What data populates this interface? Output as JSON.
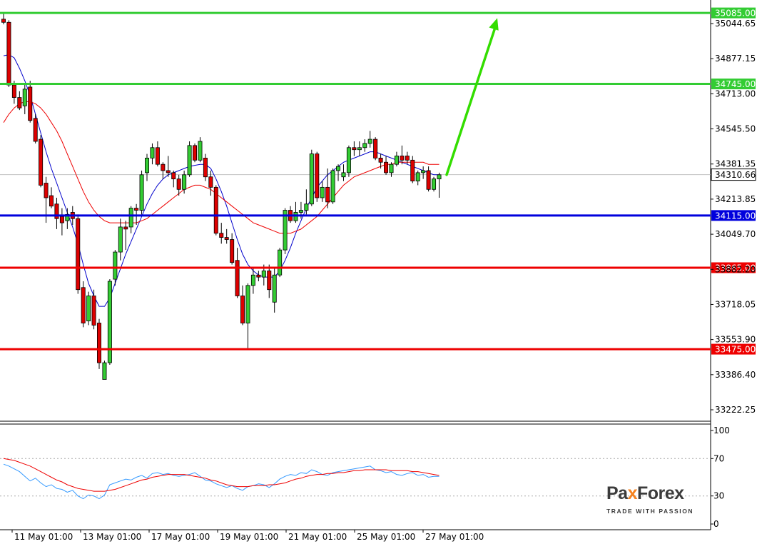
{
  "chart_data": [
    {
      "type": "candlestick",
      "y_ticks": [
        "35044.65",
        "34877.15",
        "34713.00",
        "34545.50",
        "34381.35",
        "34213.85",
        "34049.70",
        "33882.20",
        "33718.05",
        "33553.90",
        "33386.40",
        "33222.25"
      ],
      "x_ticks": [
        "11 May 01:00",
        "13 May 01:00",
        "17 May 01:00",
        "19 May 01:00",
        "21 May 01:00",
        "25 May 01:00",
        "27 May 01:00"
      ],
      "ylim": [
        33130,
        35140
      ],
      "current_price": {
        "label": "34310.66",
        "value": 34310.66
      },
      "levels": [
        {
          "label": "35085.00",
          "value": 35085.0,
          "role": "target",
          "color": "#33cc33"
        },
        {
          "label": "34745.00",
          "value": 34745.0,
          "role": "target",
          "color": "#33cc33"
        },
        {
          "label": "34115.00",
          "value": 34115.0,
          "role": "pivot",
          "color": "#0000dd"
        },
        {
          "label": "33865.00",
          "value": 33865.0,
          "role": "support",
          "color": "#ee0000"
        },
        {
          "label": "33475.00",
          "value": 33475.0,
          "role": "support",
          "color": "#ee0000"
        }
      ],
      "ohlc": [
        [
          35055,
          35085,
          35030,
          35040
        ],
        [
          35040,
          35050,
          34730,
          34740
        ],
        [
          34740,
          34760,
          34650,
          34680
        ],
        [
          34680,
          34710,
          34620,
          34630
        ],
        [
          34640,
          34740,
          34600,
          34720
        ],
        [
          34730,
          34760,
          34560,
          34570
        ],
        [
          34580,
          34600,
          34460,
          34470
        ],
        [
          34480,
          34500,
          34250,
          34260
        ],
        [
          34270,
          34300,
          34080,
          34200
        ],
        [
          34210,
          34250,
          34150,
          34160
        ],
        [
          34170,
          34200,
          34050,
          34100
        ],
        [
          34110,
          34150,
          34020,
          34080
        ],
        [
          34090,
          34150,
          34050,
          34120
        ],
        [
          34130,
          34160,
          34070,
          34100
        ],
        [
          34100,
          34120,
          33740,
          33760
        ],
        [
          33770,
          33800,
          33580,
          33600
        ],
        [
          33610,
          33750,
          33590,
          33730
        ],
        [
          33730,
          33760,
          33570,
          33590
        ],
        [
          33600,
          33620,
          33380,
          33410
        ],
        [
          33330,
          33420,
          33330,
          33410
        ],
        [
          33410,
          33810,
          33400,
          33800
        ],
        [
          33810,
          33950,
          33780,
          33940
        ],
        [
          33940,
          34100,
          33900,
          34060
        ],
        [
          34060,
          34090,
          33950,
          34050
        ],
        [
          34060,
          34160,
          34030,
          34150
        ],
        [
          34150,
          34170,
          34070,
          34140
        ],
        [
          34140,
          34330,
          34120,
          34310
        ],
        [
          34320,
          34410,
          34280,
          34390
        ],
        [
          34390,
          34460,
          34360,
          34440
        ],
        [
          34440,
          34470,
          34350,
          34360
        ],
        [
          34360,
          34370,
          34290,
          34330
        ],
        [
          34330,
          34400,
          34300,
          34320
        ],
        [
          34320,
          34330,
          34250,
          34290
        ],
        [
          34290,
          34310,
          34210,
          34240
        ],
        [
          34240,
          34330,
          34220,
          34310
        ],
        [
          34310,
          34470,
          34300,
          34450
        ],
        [
          34450,
          34460,
          34370,
          34380
        ],
        [
          34380,
          34490,
          34370,
          34470
        ],
        [
          34390,
          34410,
          34280,
          34300
        ],
        [
          34300,
          34330,
          34210,
          34250
        ],
        [
          34250,
          34260,
          34020,
          34030
        ],
        [
          34030,
          34080,
          33980,
          34010
        ],
        [
          34010,
          34050,
          33980,
          34000
        ],
        [
          34000,
          34030,
          33880,
          33890
        ],
        [
          33900,
          33960,
          33720,
          33730
        ],
        [
          33730,
          33780,
          33590,
          33600
        ],
        [
          33600,
          33790,
          33480,
          33780
        ],
        [
          33780,
          33860,
          33740,
          33830
        ],
        [
          33830,
          33850,
          33800,
          33820
        ],
        [
          33820,
          33880,
          33780,
          33850
        ],
        [
          33850,
          33880,
          33720,
          33760
        ],
        [
          33700,
          33870,
          33650,
          33830
        ],
        [
          33830,
          33960,
          33820,
          33950
        ],
        [
          33950,
          34150,
          33930,
          34140
        ],
        [
          34140,
          34160,
          34080,
          34090
        ],
        [
          34090,
          34180,
          34080,
          34130
        ],
        [
          34130,
          34180,
          34100,
          34140
        ],
        [
          34140,
          34240,
          34120,
          34170
        ],
        [
          34170,
          34430,
          34160,
          34410
        ],
        [
          34410,
          34420,
          34180,
          34200
        ],
        [
          34200,
          34280,
          34180,
          34250
        ],
        [
          34250,
          34340,
          34150,
          34180
        ],
        [
          34180,
          34340,
          34170,
          34330
        ],
        [
          34330,
          34360,
          34280,
          34350
        ],
        [
          34300,
          34360,
          34280,
          34320
        ],
        [
          34320,
          34450,
          34300,
          34440
        ],
        [
          34440,
          34470,
          34400,
          34430
        ],
        [
          34430,
          34470,
          34400,
          34440
        ],
        [
          34440,
          34480,
          34420,
          34460
        ],
        [
          34460,
          34520,
          34440,
          34480
        ],
        [
          34480,
          34490,
          34380,
          34390
        ],
        [
          34390,
          34410,
          34340,
          34370
        ],
        [
          34370,
          34400,
          34310,
          34320
        ],
        [
          34320,
          34370,
          34300,
          34360
        ],
        [
          34360,
          34420,
          34350,
          34400
        ],
        [
          34400,
          34450,
          34360,
          34380
        ],
        [
          34400,
          34420,
          34360,
          34380
        ],
        [
          34380,
          34400,
          34270,
          34280
        ],
        [
          34280,
          34330,
          34260,
          34320
        ],
        [
          34320,
          34350,
          34290,
          34330
        ],
        [
          34330,
          34350,
          34230,
          34240
        ],
        [
          34240,
          34300,
          34230,
          34290
        ],
        [
          34290,
          34320,
          34200,
          34310
        ]
      ],
      "overlays": [
        {
          "kind": "fast moving average",
          "color": "#0000cc",
          "y": [
            34880,
            34885,
            34870,
            34820,
            34760,
            34690,
            34600,
            34510,
            34420,
            34340,
            34270,
            34200,
            34130,
            34060,
            33980,
            33880,
            33790,
            33730,
            33680,
            33680,
            33720,
            33790,
            33860,
            33930,
            33990,
            34050,
            34110,
            34170,
            34220,
            34260,
            34290,
            34310,
            34320,
            34330,
            34340,
            34350,
            34355,
            34360,
            34360,
            34340,
            34290,
            34230,
            34160,
            34080,
            34000,
            33930,
            33880,
            33850,
            33830,
            33820,
            33820,
            33820,
            33850,
            33900,
            33960,
            34030,
            34090,
            34150,
            34200,
            34250,
            34280,
            34310,
            34330,
            34350,
            34370,
            34380,
            34390,
            34400,
            34410,
            34420,
            34420,
            34410,
            34400,
            34390,
            34380,
            34370,
            34360,
            34350,
            34340,
            34330,
            34320,
            34310,
            34310
          ]
        },
        {
          "kind": "slow moving average",
          "color": "#ee0000",
          "y": [
            34560,
            34600,
            34630,
            34650,
            34660,
            34660,
            34650,
            34630,
            34600,
            34560,
            34520,
            34470,
            34410,
            34350,
            34290,
            34230,
            34180,
            34140,
            34110,
            34090,
            34080,
            34080,
            34080,
            34080,
            34080,
            34080,
            34090,
            34100,
            34120,
            34140,
            34160,
            34180,
            34200,
            34220,
            34240,
            34250,
            34260,
            34260,
            34250,
            34240,
            34220,
            34200,
            34180,
            34160,
            34140,
            34120,
            34100,
            34080,
            34070,
            34060,
            34050,
            34040,
            34030,
            34030,
            34030,
            34040,
            34050,
            34070,
            34090,
            34110,
            34140,
            34170,
            34200,
            34230,
            34260,
            34280,
            34300,
            34310,
            34320,
            34330,
            34340,
            34350,
            34360,
            34360,
            34370,
            34370,
            34370,
            34370,
            34370,
            34370,
            34360,
            34360,
            34360
          ]
        }
      ],
      "projection": {
        "direction": "up",
        "from_value": 34310,
        "to_value": 35060,
        "color": "#33dd00"
      }
    },
    {
      "type": "line",
      "y_ticks": [
        "100",
        "70",
        "30",
        "0"
      ],
      "ylim": [
        0,
        100
      ],
      "reference_lines": [
        70,
        30
      ],
      "series": [
        {
          "kind": "oscillator",
          "color": "#3399ff",
          "y": [
            64,
            62,
            59,
            56,
            51,
            46,
            49,
            44,
            40,
            42,
            38,
            37,
            34,
            36,
            30,
            27,
            31,
            30,
            27,
            31,
            42,
            44,
            46,
            48,
            47,
            50,
            52,
            49,
            54,
            55,
            53,
            54,
            52,
            51,
            52,
            53,
            55,
            51,
            47,
            46,
            43,
            41,
            39,
            41,
            38,
            36,
            40,
            41,
            43,
            42,
            39,
            43,
            48,
            51,
            53,
            52,
            55,
            54,
            58,
            56,
            53,
            52,
            55,
            56,
            57,
            58,
            59,
            60,
            61,
            62,
            58,
            57,
            55,
            56,
            53,
            52,
            54,
            55,
            52,
            53,
            50,
            51,
            51
          ]
        },
        {
          "kind": "signal",
          "color": "#ee0000",
          "y": [
            70,
            69,
            68,
            66,
            64,
            62,
            59,
            56,
            53,
            50,
            47,
            45,
            42,
            40,
            38,
            37,
            36,
            35,
            35,
            35,
            36,
            37,
            39,
            41,
            43,
            45,
            47,
            48,
            50,
            51,
            52,
            53,
            53,
            53,
            53,
            52,
            51,
            50,
            49,
            47,
            46,
            44,
            42,
            41,
            40,
            40,
            40,
            41,
            41,
            41,
            42,
            42,
            43,
            44,
            46,
            48,
            49,
            51,
            52,
            53,
            53,
            54,
            54,
            55,
            55,
            56,
            57,
            57,
            58,
            58,
            58,
            58,
            58,
            57,
            57,
            57,
            57,
            56,
            56,
            55,
            54,
            53,
            52
          ]
        }
      ]
    }
  ],
  "branding": {
    "logo_pa": "Pa",
    "logo_x": "x",
    "logo_forex": "Forex",
    "tagline": "TRADE WITH PASSION",
    "accent_color": "#f5821f"
  }
}
